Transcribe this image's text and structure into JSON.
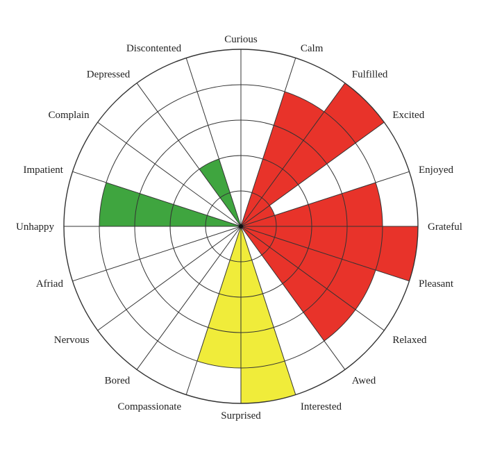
{
  "chart_data": {
    "type": "polar-area",
    "title": "",
    "rmax": 5,
    "ring_count": 5,
    "grid": true,
    "colors": {
      "red": "#e8332a",
      "green": "#3fa53f",
      "yellow": "#f0ec3a",
      "none": "#ffffff",
      "grid": "#333333"
    },
    "categories": [
      "Calm",
      "Fulfilled",
      "Excited",
      "Enjoyed",
      "Grateful",
      "Pleasant",
      "Relaxed",
      "Awed",
      "Interested",
      "Surprised",
      "Compassionate",
      "Bored",
      "Nervous",
      "Afriad",
      "Unhappy",
      "Impatient",
      "Complain",
      "Depressed",
      "Discontented",
      "Curious"
    ],
    "values": [
      0,
      4,
      5,
      1,
      4,
      5,
      4,
      4,
      0,
      5,
      4,
      0,
      0,
      0,
      0,
      4,
      0,
      0,
      2,
      0
    ],
    "value_colors": [
      "none",
      "red",
      "red",
      "red",
      "red",
      "red",
      "red",
      "red",
      "none",
      "yellow",
      "yellow",
      "none",
      "none",
      "none",
      "none",
      "green",
      "none",
      "none",
      "green",
      "none"
    ]
  }
}
